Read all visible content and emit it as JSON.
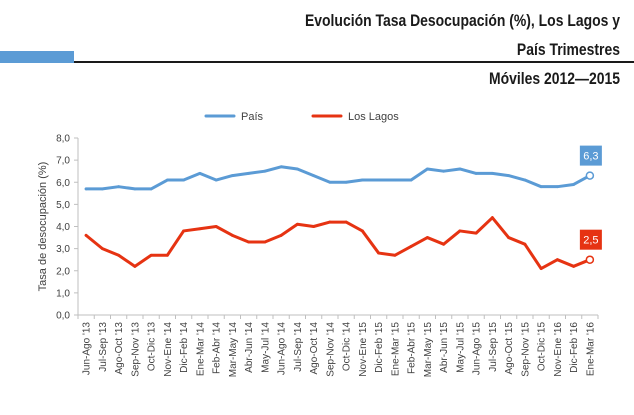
{
  "title_line1": "Evolución Tasa Desocupación (%), Los Lagos y País Trimestres",
  "title_line2": "Móviles 2012—2015",
  "chart_data": {
    "type": "line",
    "title": "Evolución Tasa Desocupación (%), Los Lagos y País Trimestres Móviles 2012—2015",
    "ylabel": "Tasa de desocupación (%)",
    "ylim": [
      0,
      8
    ],
    "yticks": [
      "0,0",
      "1,0",
      "2,0",
      "3,0",
      "4,0",
      "5,0",
      "6,0",
      "7,0",
      "8,0"
    ],
    "categories": [
      "Jun-Ago '13",
      "Jul-Sep '13",
      "Ago-Oct '13",
      "Sep-Nov '13",
      "Oct-Dic '13",
      "Nov-Ene '14",
      "Dic-Feb '14",
      "Ene-Mar '14",
      "Feb-Abr '14",
      "Mar-May '14",
      "Abr-Jun '14",
      "May-Jul '14",
      "Jun-Ago '14",
      "Jul-Sep '14",
      "Ago-Oct '14",
      "Sep-Nov '14",
      "Oct-Dic '14",
      "Nov-Ene '15",
      "Dic-Feb '15",
      "Ene-Mar '15",
      "Feb-Abr '15",
      "Mar-May '15",
      "Abr-Jun '15",
      "May-Jul '15",
      "Jun-Ago '15",
      "Jul-Sep '15",
      "Ago-Oct '15",
      "Sep-Nov '15",
      "Oct-Dic '15",
      "Nov-Ene '16",
      "Dic-Feb '16",
      "Ene-Mar '16"
    ],
    "series": [
      {
        "name": "País",
        "color": "#5b9bd5",
        "values": [
          5.7,
          5.7,
          5.8,
          5.7,
          5.7,
          6.1,
          6.1,
          6.4,
          6.1,
          6.3,
          6.4,
          6.5,
          6.7,
          6.6,
          6.3,
          6.0,
          6.0,
          6.1,
          6.1,
          6.1,
          6.1,
          6.6,
          6.5,
          6.6,
          6.4,
          6.4,
          6.3,
          6.1,
          5.8,
          5.8,
          5.9,
          6.3
        ],
        "end_label": "6,3"
      },
      {
        "name": "Los Lagos",
        "color": "#e63312",
        "values": [
          3.6,
          3.0,
          2.7,
          2.2,
          2.7,
          2.7,
          3.8,
          3.9,
          4.0,
          3.6,
          3.3,
          3.3,
          3.6,
          4.1,
          4.0,
          4.2,
          4.2,
          3.8,
          2.8,
          2.7,
          3.1,
          3.5,
          3.2,
          3.8,
          3.7,
          4.4,
          3.5,
          3.2,
          2.1,
          2.5,
          2.2,
          2.5
        ],
        "end_label": "2,5"
      }
    ],
    "grid": false,
    "legend_position": "top-center"
  }
}
